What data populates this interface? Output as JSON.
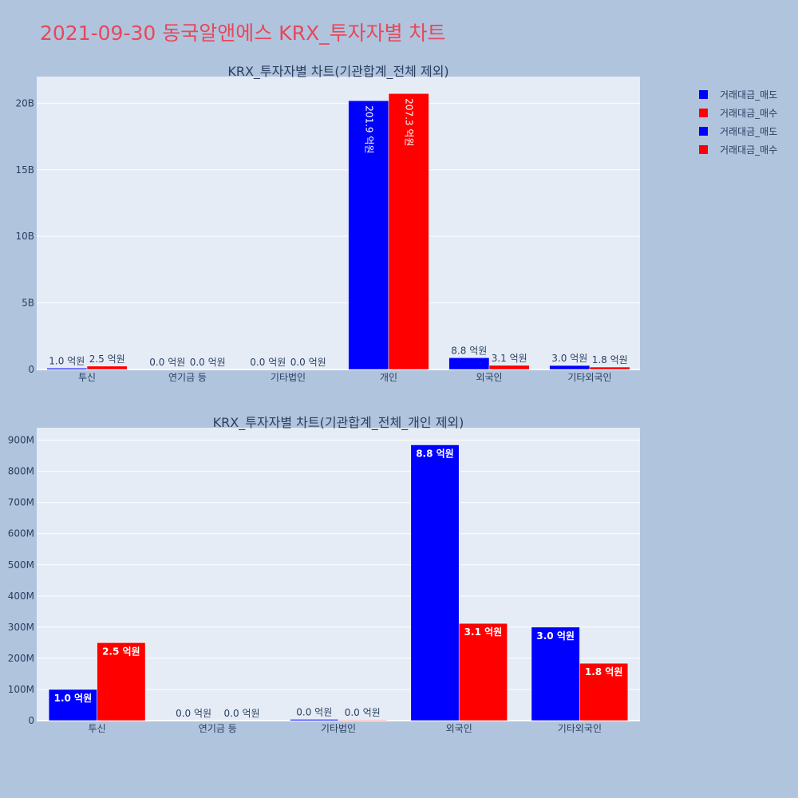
{
  "title": "2021-09-30 동국알앤에스 KRX_투자자별 차트",
  "colors": {
    "sell": "#0000ff",
    "buy": "#ff0000",
    "plot_bg": "#e5ecf6",
    "page_bg": "#b0c4de",
    "title": "#e8475a",
    "text": "#2a3f5f"
  },
  "legend": [
    {
      "label": "거래대금_매도",
      "color": "#0000ff"
    },
    {
      "label": "거래대금_매수",
      "color": "#ff0000"
    },
    {
      "label": "거래대금_매도",
      "color": "#0000ff"
    },
    {
      "label": "거래대금_매수",
      "color": "#ff0000"
    }
  ],
  "chart_data": [
    {
      "type": "bar",
      "title": "KRX_투자자별 차트(기관합계_전체 제외)",
      "categories": [
        "투신",
        "연기금 등",
        "기타법인",
        "개인",
        "외국인",
        "기타외국인"
      ],
      "series": [
        {
          "name": "거래대금_매도",
          "color": "#0000ff",
          "values": [
            100000000,
            0,
            0,
            20190000000,
            880000000,
            300000000
          ],
          "labels": [
            "1.0 억원",
            "0.0 억원",
            "0.0 억원",
            "201.9 억원",
            "8.8 억원",
            "3.0 억원"
          ]
        },
        {
          "name": "거래대금_매수",
          "color": "#ff0000",
          "values": [
            250000000,
            0,
            0,
            20730000000,
            310000000,
            180000000
          ],
          "labels": [
            "2.5 억원",
            "0.0 억원",
            "0.0 억원",
            "207.3 억원",
            "3.1 억원",
            "1.8 억원"
          ]
        }
      ],
      "ylim": [
        0,
        22000000000
      ],
      "yticks": [
        0,
        5000000000,
        10000000000,
        15000000000,
        20000000000
      ],
      "ytick_labels": [
        "0",
        "5B",
        "10B",
        "15B",
        "20B"
      ],
      "grid": true,
      "legend_position": "top-right"
    },
    {
      "type": "bar",
      "title": "KRX_투자자별 차트(기관합계_전체_개인 제외)",
      "categories": [
        "투신",
        "연기금 등",
        "기타법인",
        "외국인",
        "기타외국인"
      ],
      "series": [
        {
          "name": "거래대금_매도",
          "color": "#0000ff",
          "values": [
            100000000,
            0,
            4000000,
            885000000,
            300000000
          ],
          "labels": [
            "1.0 억원",
            "0.0 억원",
            "0.0 억원",
            "8.8 억원",
            "3.0 억원"
          ]
        },
        {
          "name": "거래대금_매수",
          "color": "#ff0000",
          "values": [
            250000000,
            0,
            2000000,
            312000000,
            184000000
          ],
          "labels": [
            "2.5 억원",
            "0.0 억원",
            "0.0 억원",
            "3.1 억원",
            "1.8 억원"
          ]
        }
      ],
      "ylim": [
        0,
        940000000
      ],
      "yticks": [
        0,
        100000000,
        200000000,
        300000000,
        400000000,
        500000000,
        600000000,
        700000000,
        800000000,
        900000000
      ],
      "ytick_labels": [
        "0",
        "100M",
        "200M",
        "300M",
        "400M",
        "500M",
        "600M",
        "700M",
        "800M",
        "900M"
      ],
      "grid": true
    }
  ]
}
